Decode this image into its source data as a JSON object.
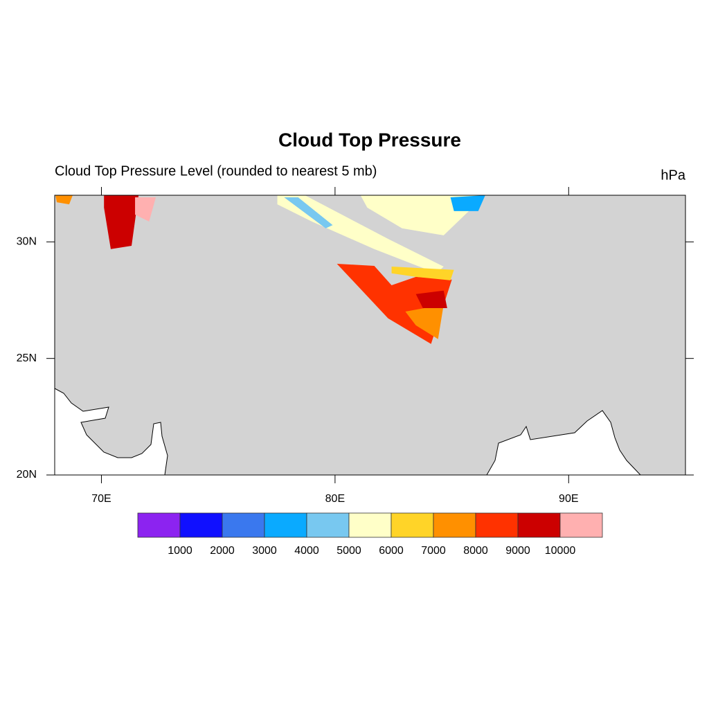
{
  "chart_data": {
    "type": "map",
    "title": "Cloud Top Pressure",
    "subtitle": "Cloud Top Pressure Level (rounded to nearest 5 mb)",
    "units": "hPa",
    "xlim": [
      68,
      95
    ],
    "ylim": [
      20,
      32
    ],
    "xticks": [
      {
        "value": 70,
        "label": "70E"
      },
      {
        "value": 80,
        "label": "80E"
      },
      {
        "value": 90,
        "label": "90E"
      }
    ],
    "yticks": [
      {
        "value": 20,
        "label": "20N"
      },
      {
        "value": 25,
        "label": "25N"
      },
      {
        "value": 30,
        "label": "30N"
      }
    ],
    "background_color": "#d3d3d3",
    "colorbar": {
      "levels": [
        1000,
        2000,
        3000,
        4000,
        5000,
        6000,
        7000,
        8000,
        9000,
        10000
      ],
      "colors": [
        "#8c23f0",
        "#1010ff",
        "#3a78ee",
        "#0aaaff",
        "#78c8f0",
        "#ffffc8",
        "#ffd428",
        "#ff9000",
        "#ff3200",
        "#cc0000",
        "#ffb0b0"
      ]
    },
    "regions": [
      {
        "value": 5500,
        "lonlat": [
          [
            77.53,
            32
          ],
          [
            78.71,
            32
          ],
          [
            82.27,
            30.13
          ],
          [
            84.65,
            28.94
          ],
          [
            84.35,
            28.65
          ],
          [
            81.68,
            29.69
          ],
          [
            79.01,
            30.87
          ],
          [
            77.53,
            31.61
          ]
        ]
      },
      {
        "value": 5500,
        "lonlat": [
          [
            81.09,
            32
          ],
          [
            86.43,
            32
          ],
          [
            84.65,
            30.28
          ],
          [
            82.87,
            30.58
          ],
          [
            81.38,
            31.47
          ]
        ]
      },
      {
        "value": 4500,
        "lonlat": [
          [
            77.82,
            31.91
          ],
          [
            78.42,
            31.91
          ],
          [
            79.9,
            30.72
          ],
          [
            79.6,
            30.58
          ]
        ]
      },
      {
        "value": 3500,
        "lonlat": [
          [
            84.94,
            31.91
          ],
          [
            86.43,
            32
          ],
          [
            86.13,
            31.32
          ],
          [
            85.09,
            31.32
          ]
        ]
      },
      {
        "value": 8500,
        "lonlat": [
          [
            80.08,
            29.06
          ],
          [
            81.68,
            28.97
          ],
          [
            82.42,
            28.14
          ],
          [
            83.46,
            28.5
          ],
          [
            85.0,
            28.38
          ],
          [
            84.11,
            25.62
          ],
          [
            82.27,
            26.72
          ]
        ]
      },
      {
        "value": 6500,
        "lonlat": [
          [
            82.42,
            28.94
          ],
          [
            85.09,
            28.8
          ],
          [
            84.94,
            28.35
          ],
          [
            83.46,
            28.5
          ],
          [
            82.42,
            28.65
          ]
        ]
      },
      {
        "value": 7500,
        "lonlat": [
          [
            83.01,
            27.01
          ],
          [
            84.65,
            27.31
          ],
          [
            84.41,
            25.83
          ],
          [
            83.46,
            26.42
          ]
        ]
      },
      {
        "value": 9500,
        "lonlat": [
          [
            83.46,
            27.76
          ],
          [
            84.65,
            27.91
          ],
          [
            84.8,
            27.16
          ],
          [
            83.76,
            27.16
          ]
        ]
      },
      {
        "value": 9500,
        "lonlat": [
          [
            70.11,
            32
          ],
          [
            71.59,
            32
          ],
          [
            71.29,
            29.83
          ],
          [
            70.4,
            29.69
          ],
          [
            70.11,
            31.47
          ]
        ]
      },
      {
        "value": 10500,
        "lonlat": [
          [
            71.44,
            31.91
          ],
          [
            72.33,
            31.91
          ],
          [
            72.04,
            30.87
          ],
          [
            71.44,
            31.17
          ]
        ]
      },
      {
        "value": 7500,
        "lonlat": [
          [
            68.03,
            32
          ],
          [
            68.77,
            32
          ],
          [
            68.62,
            31.61
          ],
          [
            68.09,
            31.7
          ]
        ]
      }
    ]
  }
}
